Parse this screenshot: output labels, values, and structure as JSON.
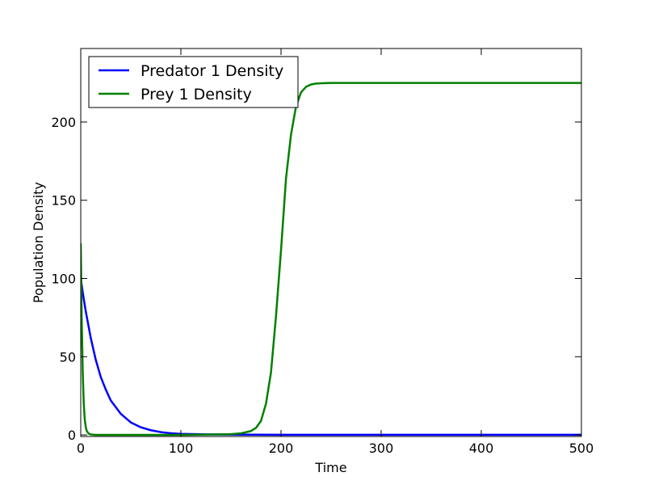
{
  "chart_data": {
    "type": "line",
    "title": "",
    "xlabel": "Time",
    "ylabel": "Population Density",
    "xlim": [
      0,
      500
    ],
    "ylim": [
      -1,
      247
    ],
    "xticks": [
      0,
      100,
      200,
      300,
      400,
      500
    ],
    "yticks": [
      0,
      50,
      100,
      150,
      200
    ],
    "grid": false,
    "legend_position": "top-left",
    "series": [
      {
        "name": "Predator 1 Density",
        "color": "#0000ff",
        "x": [
          0,
          2,
          5,
          10,
          15,
          20,
          25,
          30,
          40,
          50,
          60,
          70,
          80,
          90,
          100,
          120,
          150,
          200,
          300,
          400,
          500
        ],
        "y": [
          100,
          91,
          79,
          62,
          48,
          37,
          29,
          22,
          13.5,
          8,
          4.9,
          3,
          1.8,
          1.1,
          0.7,
          0.4,
          0.2,
          0.1,
          0.1,
          0.1,
          0.1
        ]
      },
      {
        "name": "Prey 1 Density",
        "color": "#008000",
        "x": [
          0,
          1,
          2,
          3,
          4,
          5,
          6,
          8,
          10,
          15,
          50,
          100,
          150,
          160,
          170,
          175,
          180,
          185,
          190,
          195,
          200,
          205,
          210,
          215,
          220,
          225,
          230,
          235,
          240,
          250,
          270,
          300,
          400,
          500
        ],
        "y": [
          122,
          72,
          40,
          20,
          10,
          5,
          2.5,
          0.8,
          0.3,
          0.05,
          0,
          0,
          0.5,
          1,
          2.5,
          4.5,
          9,
          20,
          40,
          76,
          118,
          164,
          192,
          210,
          219,
          222.5,
          224,
          224.6,
          224.8,
          225,
          225,
          225,
          225,
          225
        ]
      }
    ]
  }
}
